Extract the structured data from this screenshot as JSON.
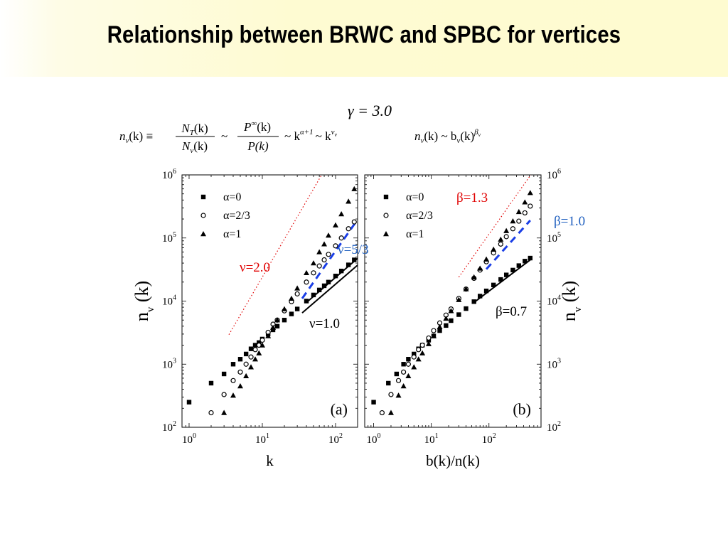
{
  "slide": {
    "title": "Relationship between BRWC and SPBC for vertices"
  },
  "equations": {
    "gamma": "γ = 3.0",
    "left_eq": {
      "lhs": "n",
      "lhs_sub": "v",
      "lhs_arg": "(k) ≡",
      "frac1_num": "N",
      "frac1_num_sub": "T",
      "frac1_num_arg": "(k)",
      "frac1_den": "N",
      "frac1_den_sub": "v",
      "frac1_den_arg": "(k)",
      "sim1": "~",
      "frac2_num": "P",
      "frac2_num_sup": "∞",
      "frac2_num_arg": "(k)",
      "frac2_den": "P(k)",
      "sim2": "~ k",
      "sup_alpha": "α+1",
      "sim3": "~ k",
      "sup_nu": "ν",
      "sup_nu_sub": "v"
    },
    "right_eq": {
      "lhs": "n",
      "lhs_sub": "v",
      "mid": "(k) ~ b",
      "mid_sub": "v",
      "end": "(k)",
      "sup": "β",
      "sup_sub": "v"
    }
  },
  "colors": {
    "red": "#e00000",
    "blue": "#1f5fbf",
    "dashed_blue": "#1a3ee6",
    "black": "#000000"
  },
  "chart_data": [
    {
      "type": "scatter",
      "panel_label": "(a)",
      "xlabel": "k",
      "ylabel": "n",
      "ylabel_sub": "v",
      "ylabel_arg": " (k)",
      "x_scale": "log",
      "y_scale": "log",
      "xlim": [
        0.8,
        200
      ],
      "ylim": [
        100,
        1000000
      ],
      "x_ticks": [
        {
          "v": 1,
          "m": "10",
          "e": "0"
        },
        {
          "v": 10,
          "m": "10",
          "e": "1"
        },
        {
          "v": 100,
          "m": "10",
          "e": "2"
        }
      ],
      "y_ticks": [
        {
          "v": 100,
          "m": "10",
          "e": "2"
        },
        {
          "v": 1000,
          "m": "10",
          "e": "3"
        },
        {
          "v": 10000,
          "m": "10",
          "e": "4"
        },
        {
          "v": 100000,
          "m": "10",
          "e": "5"
        },
        {
          "v": 1000000,
          "m": "10",
          "e": "6"
        }
      ],
      "legend": [
        {
          "label": "α=0",
          "marker": "square"
        },
        {
          "label": "α=2/3",
          "marker": "circle"
        },
        {
          "label": "α=1",
          "marker": "triangle"
        }
      ],
      "series": [
        {
          "marker": "square",
          "x": [
            1,
            2,
            3,
            4,
            5,
            6,
            7,
            8,
            9,
            10,
            12,
            14,
            16,
            20,
            25,
            30,
            40,
            50,
            60,
            70,
            80,
            100,
            120,
            150,
            180
          ],
          "y": [
            250,
            500,
            700,
            1000,
            1200,
            1450,
            1750,
            2000,
            2200,
            2500,
            3000,
            3500,
            4000,
            5000,
            6250,
            7500,
            10000,
            12500,
            15000,
            17500,
            20000,
            25000,
            30000,
            37500,
            45000
          ]
        },
        {
          "marker": "circle",
          "x": [
            2,
            3,
            4,
            5,
            6,
            7,
            8,
            9,
            10,
            12,
            14,
            16,
            20,
            25,
            30,
            40,
            50,
            60,
            70,
            80,
            100,
            120,
            150,
            180
          ],
          "y": [
            170,
            330,
            550,
            750,
            1000,
            1300,
            1700,
            2000,
            2400,
            3200,
            4300,
            5000,
            7000,
            9800,
            13000,
            20000,
            28000,
            36000,
            45000,
            55000,
            75000,
            100000,
            140000,
            180000
          ]
        },
        {
          "marker": "triangle",
          "x": [
            3,
            4,
            5,
            6,
            7,
            8,
            9,
            10,
            12,
            14,
            16,
            20,
            25,
            30,
            40,
            50,
            60,
            70,
            80,
            100,
            120,
            150,
            180
          ],
          "y": [
            170,
            320,
            450,
            650,
            900,
            1200,
            1500,
            2000,
            2800,
            3800,
            5000,
            7500,
            11000,
            16000,
            28000,
            40000,
            60000,
            80000,
            110000,
            160000,
            240000,
            380000,
            600000
          ]
        }
      ],
      "guides": [
        {
          "label": "ν=2.0",
          "slope": 2.0,
          "style": "red-dotted",
          "x": [
            3.5,
            200
          ],
          "y": [
            2940,
            9600000
          ]
        },
        {
          "label": "ν=5/3",
          "slope": 1.6667,
          "style": "blue-dashed",
          "x": [
            35,
            190
          ],
          "y": [
            11000,
            180000
          ]
        },
        {
          "label": "ν=1.0",
          "slope": 1.0,
          "style": "black-solid",
          "x": [
            35,
            200
          ],
          "y": [
            6500,
            37100
          ]
        },
        {
          "style": "black-solid",
          "slope": 1.0,
          "x": [
            40,
            200
          ],
          "y": [
            9500,
            47500
          ]
        }
      ]
    },
    {
      "type": "scatter",
      "panel_label": "(b)",
      "xlabel": "b(k)/n(k)",
      "ylabel": "n",
      "ylabel_sub": "v",
      "ylabel_arg": " (k)",
      "x_scale": "log",
      "y_scale": "log",
      "xlim": [
        0.7,
        800
      ],
      "ylim": [
        100,
        1000000
      ],
      "x_ticks": [
        {
          "v": 1,
          "m": "10",
          "e": "0"
        },
        {
          "v": 10,
          "m": "10",
          "e": "1"
        },
        {
          "v": 100,
          "m": "10",
          "e": "2"
        }
      ],
      "y_ticks": [
        {
          "v": 100,
          "m": "10",
          "e": "2"
        },
        {
          "v": 1000,
          "m": "10",
          "e": "3"
        },
        {
          "v": 10000,
          "m": "10",
          "e": "4"
        },
        {
          "v": 100000,
          "m": "10",
          "e": "5"
        },
        {
          "v": 1000000,
          "m": "10",
          "e": "6"
        }
      ],
      "legend": [
        {
          "label": "α=0",
          "marker": "square"
        },
        {
          "label": "α=2/3",
          "marker": "circle"
        },
        {
          "label": "α=1",
          "marker": "triangle"
        }
      ],
      "series": [
        {
          "marker": "square",
          "x": [
            1,
            1.8,
            2.5,
            3.3,
            4,
            5,
            6,
            7,
            9,
            11,
            14,
            18,
            22,
            30,
            40,
            55,
            70,
            90,
            120,
            160,
            200,
            260,
            330,
            420,
            520
          ],
          "y": [
            250,
            500,
            700,
            1000,
            1200,
            1450,
            1750,
            2000,
            2400,
            2800,
            3400,
            4100,
            4900,
            6100,
            7600,
            9800,
            12000,
            14500,
            18000,
            22000,
            26000,
            31000,
            36500,
            43000,
            48000
          ]
        },
        {
          "marker": "circle",
          "x": [
            1.4,
            2,
            2.7,
            3.3,
            4,
            5,
            6,
            7,
            9,
            11,
            14,
            18,
            22,
            30,
            40,
            55,
            70,
            90,
            120,
            160,
            200,
            260,
            330,
            420,
            520
          ],
          "y": [
            170,
            330,
            550,
            750,
            1000,
            1300,
            1700,
            2000,
            2600,
            3400,
            4500,
            6000,
            7500,
            11000,
            15500,
            23000,
            31000,
            42000,
            58000,
            80000,
            105000,
            140000,
            185000,
            250000,
            320000
          ]
        },
        {
          "marker": "triangle",
          "x": [
            2,
            2.7,
            3.3,
            4,
            5,
            6,
            7,
            9,
            11,
            14,
            18,
            22,
            30,
            40,
            55,
            70,
            90,
            120,
            160,
            200,
            260,
            330,
            420,
            520
          ],
          "y": [
            170,
            320,
            450,
            650,
            900,
            1200,
            1500,
            2100,
            2800,
            3900,
            5300,
            7000,
            10500,
            15500,
            24000,
            33000,
            46000,
            66000,
            95000,
            130000,
            185000,
            260000,
            370000,
            520000
          ]
        }
      ],
      "guides": [
        {
          "label": "β=1.3",
          "slope": 1.3,
          "style": "red-dotted",
          "x": [
            30,
            550
          ],
          "y": [
            24000,
            1050000
          ]
        },
        {
          "label": "β=1.0",
          "slope": 1.0,
          "style": "blue-dashed",
          "x": [
            90,
            520
          ],
          "y": [
            32000,
            190000
          ]
        },
        {
          "label": "β=0.7",
          "slope": 0.7,
          "style": "black-solid",
          "x": [
            55,
            520
          ],
          "y": [
            9500,
            45000
          ]
        }
      ]
    }
  ]
}
